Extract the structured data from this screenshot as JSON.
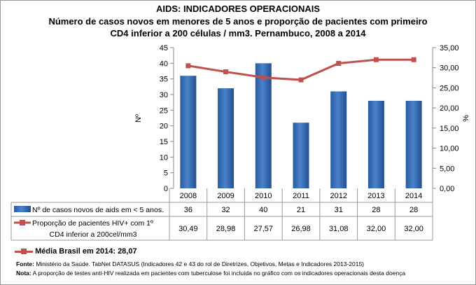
{
  "title": "AIDS: INDICADORES OPERACIONAIS",
  "subtitle1": "Número de casos novos em menores de 5 anos e proporção de pacientes com primeiro",
  "subtitle2": "CD4 inferior a 200 células / mm3. Pernambuco, 2008 a 2014",
  "chart_data": {
    "type": "bar+line",
    "categories": [
      "2008",
      "2009",
      "2010",
      "2011",
      "2012",
      "2013",
      "2014"
    ],
    "series": [
      {
        "name": "Nº de casos novos de aids em < 5 anos.",
        "type": "bar",
        "axis": "left",
        "values": [
          36,
          32,
          40,
          21,
          31,
          28,
          28
        ],
        "labels": [
          "36",
          "32",
          "40",
          "21",
          "31",
          "28",
          "28"
        ],
        "color": "#3c70b8"
      },
      {
        "name": "Proporção de pacientes HIV+ com 1º CD4 inferior a 200cel/mm3",
        "name_line1": "Proporção de pacientes HIV+ com 1º",
        "name_line2": "CD4 inferior a 200cel/mm3",
        "type": "line",
        "axis": "right",
        "values": [
          30.49,
          28.98,
          27.57,
          26.98,
          31.08,
          32.0,
          32.0
        ],
        "labels": [
          "30,49",
          "28,98",
          "27,57",
          "26,98",
          "31,08",
          "32,00",
          "32,00"
        ],
        "color": "#c0504d"
      }
    ],
    "ylabel": "Nº",
    "y2label": "%",
    "ylim": [
      0,
      45
    ],
    "yticks": [
      "0",
      "5",
      "10",
      "15",
      "20",
      "25",
      "30",
      "35",
      "40",
      "45"
    ],
    "y2lim": [
      0,
      35
    ],
    "y2ticks": [
      "0,00",
      "5,00",
      "10,00",
      "15,00",
      "20,00",
      "25,00",
      "30,00",
      "35,00"
    ],
    "grid": false,
    "legend": "data-table"
  },
  "brazil_avg": "Média Brasil em 2014: 28,07",
  "source_label": "Fonte:",
  "source": " Ministério da Saúde. TabNet DATASUS (Indicadores 42 e 43 do rol de Diretrizes, Objetivos, Metas e Indicadores 2013-2015)",
  "note_label": "Nota:",
  "note": " A proporção de testes anti-HIV realizada em pacientes com tuberculose foi incluída no gráfico com os indicadores operacionais desta doença"
}
